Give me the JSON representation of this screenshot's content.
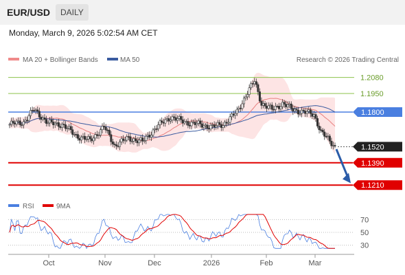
{
  "header": {
    "symbol": "EUR/USD",
    "timeframe": "DAILY"
  },
  "timestamp": "Monday, March 9, 2026 5:02:54 AM CET",
  "legend": {
    "bollinger": "MA 20 + Bollinger Bands",
    "ma50": "MA 50"
  },
  "copyright": "Research © 2026 Trading Central",
  "rsi_legend": {
    "rsi": "RSI",
    "ma9": "9MA"
  },
  "colors": {
    "up": "#333333",
    "down": "#333333",
    "resistance": "#8bc34a",
    "pivot": "#4a7fe0",
    "support": "#e00000",
    "current": "#222222",
    "ma20": "#e88080",
    "ma50": "#3a5ba0",
    "band": "#fde4e4",
    "rsi": "#4a7fe0",
    "rsi_ma": "#e00000",
    "arrow": "#2b5ca8"
  },
  "chart_data": {
    "type": "candlestick",
    "y_range": [
      1.115,
      1.215
    ],
    "x_labels": [
      "Oct",
      "Nov",
      "Dec",
      "2026",
      "Feb",
      "Mar"
    ],
    "levels": [
      {
        "value": 1.208,
        "label": "1.2080",
        "kind": "resistance"
      },
      {
        "value": 1.195,
        "label": "1.1950",
        "kind": "resistance"
      },
      {
        "value": 1.18,
        "label": "1.1800",
        "kind": "pivot"
      },
      {
        "value": 1.152,
        "label": "1.1520",
        "kind": "current"
      },
      {
        "value": 1.139,
        "label": "1.1390",
        "kind": "support"
      },
      {
        "value": 1.121,
        "label": "1.1210",
        "kind": "support"
      }
    ],
    "rsi_levels": [
      70,
      50,
      30
    ],
    "rsi_range": [
      20,
      80
    ]
  }
}
